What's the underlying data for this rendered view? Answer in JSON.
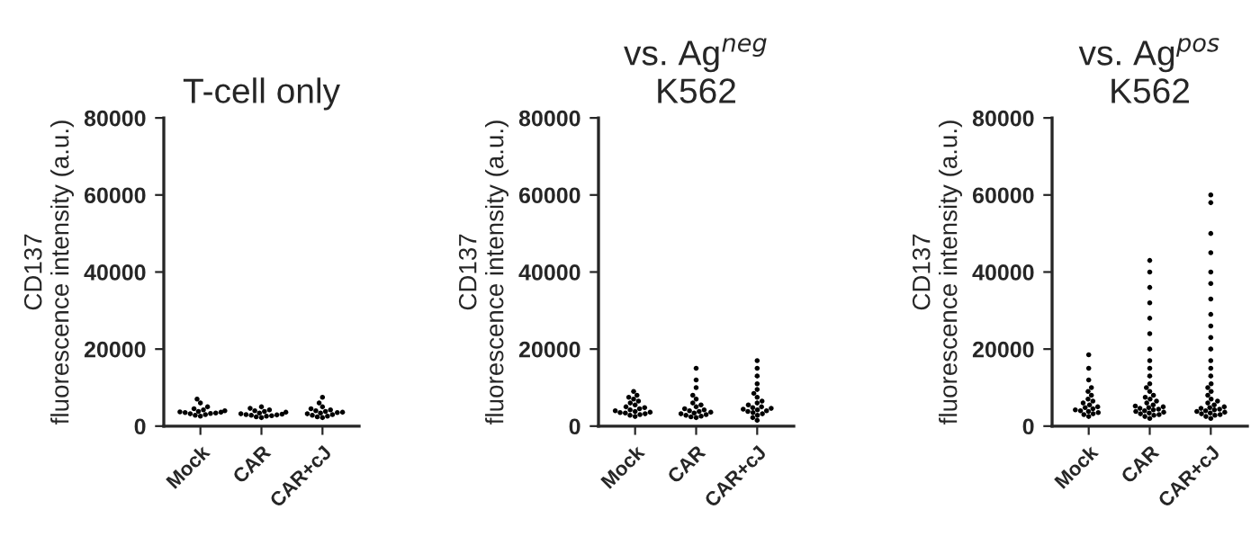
{
  "chart_data": [
    {
      "type": "scatter",
      "title": "T-cell only",
      "ylabel": "CD137\nfluorescence intensity (a.u.)",
      "categories": [
        "Mock",
        "CAR",
        "CAR+cJ"
      ],
      "ylim": [
        0,
        80000
      ],
      "yticks": [
        0,
        20000,
        40000,
        60000,
        80000
      ],
      "marker": "circle",
      "series": [
        {
          "color": "#000000",
          "x": [
            "Mock",
            "Mock",
            "Mock",
            "Mock",
            "Mock",
            "Mock",
            "Mock",
            "Mock",
            "Mock",
            "Mock",
            "Mock",
            "Mock",
            "Mock",
            "Mock",
            "Mock",
            "Mock",
            "CAR",
            "CAR",
            "CAR",
            "CAR",
            "CAR",
            "CAR",
            "CAR",
            "CAR",
            "CAR",
            "CAR",
            "CAR",
            "CAR",
            "CAR",
            "CAR",
            "CAR",
            "CAR",
            "CAR+cJ",
            "CAR+cJ",
            "CAR+cJ",
            "CAR+cJ",
            "CAR+cJ",
            "CAR+cJ",
            "CAR+cJ",
            "CAR+cJ",
            "CAR+cJ",
            "CAR+cJ",
            "CAR+cJ",
            "CAR+cJ",
            "CAR+cJ",
            "CAR+cJ",
            "CAR+cJ",
            "CAR+cJ"
          ],
          "values": [
            7000,
            6000,
            5000,
            4500,
            4200,
            4000,
            3800,
            3600,
            3500,
            3400,
            3300,
            3200,
            3000,
            2800,
            2600,
            3700,
            5000,
            4600,
            4200,
            4000,
            3800,
            3600,
            3400,
            3200,
            3000,
            2900,
            2800,
            2700,
            2600,
            2400,
            2200,
            3100,
            7500,
            6000,
            5000,
            4500,
            4200,
            4000,
            3800,
            3600,
            3400,
            3200,
            3000,
            2800,
            2600,
            2400,
            2200,
            3500
          ]
        }
      ]
    },
    {
      "type": "scatter",
      "title": "vs. Ag$^{neg}$\nK562",
      "ylabel": "CD137\nfluorescence intensity (a.u.)",
      "categories": [
        "Mock",
        "CAR",
        "CAR+cJ"
      ],
      "ylim": [
        0,
        80000
      ],
      "yticks": [
        0,
        20000,
        40000,
        60000,
        80000
      ],
      "marker": "circle",
      "series": [
        {
          "color": "#000000",
          "x": [
            "Mock",
            "Mock",
            "Mock",
            "Mock",
            "Mock",
            "Mock",
            "Mock",
            "Mock",
            "Mock",
            "Mock",
            "Mock",
            "Mock",
            "Mock",
            "Mock",
            "Mock",
            "Mock",
            "Mock",
            "Mock",
            "Mock",
            "Mock",
            "CAR",
            "CAR",
            "CAR",
            "CAR",
            "CAR",
            "CAR",
            "CAR",
            "CAR",
            "CAR",
            "CAR",
            "CAR",
            "CAR",
            "CAR",
            "CAR",
            "CAR",
            "CAR",
            "CAR",
            "CAR",
            "CAR",
            "CAR",
            "CAR+cJ",
            "CAR+cJ",
            "CAR+cJ",
            "CAR+cJ",
            "CAR+cJ",
            "CAR+cJ",
            "CAR+cJ",
            "CAR+cJ",
            "CAR+cJ",
            "CAR+cJ",
            "CAR+cJ",
            "CAR+cJ",
            "CAR+cJ",
            "CAR+cJ",
            "CAR+cJ",
            "CAR+cJ",
            "CAR+cJ",
            "CAR+cJ",
            "CAR+cJ",
            "CAR+cJ",
            "CAR+cJ",
            "CAR+cJ"
          ],
          "values": [
            9000,
            8000,
            7500,
            7000,
            6500,
            6000,
            5500,
            5000,
            4800,
            4500,
            4200,
            4000,
            3800,
            3600,
            3500,
            3400,
            3200,
            3000,
            2800,
            2500,
            15000,
            12000,
            10000,
            8000,
            7000,
            6000,
            5500,
            5000,
            4500,
            4200,
            4000,
            3800,
            3600,
            3400,
            3200,
            3000,
            2800,
            2600,
            2400,
            2200,
            17000,
            15000,
            13000,
            11000,
            9500,
            8500,
            7500,
            6500,
            6000,
            5500,
            5000,
            4800,
            4600,
            4400,
            4200,
            4000,
            3800,
            3500,
            3200,
            2800,
            2200,
            1500
          ]
        }
      ]
    },
    {
      "type": "scatter",
      "title": "vs. Ag$^{pos}$\nK562",
      "ylabel": "CD137\nfluorescence intensity (a.u.)",
      "categories": [
        "Mock",
        "CAR",
        "CAR+cJ"
      ],
      "ylim": [
        0,
        80000
      ],
      "yticks": [
        0,
        20000,
        40000,
        60000,
        80000
      ],
      "marker": "circle",
      "series": [
        {
          "color": "#000000",
          "x": [
            "Mock",
            "Mock",
            "Mock",
            "Mock",
            "Mock",
            "Mock",
            "Mock",
            "Mock",
            "Mock",
            "Mock",
            "Mock",
            "Mock",
            "Mock",
            "Mock",
            "Mock",
            "Mock",
            "Mock",
            "Mock",
            "Mock",
            "Mock",
            "CAR",
            "CAR",
            "CAR",
            "CAR",
            "CAR",
            "CAR",
            "CAR",
            "CAR",
            "CAR",
            "CAR",
            "CAR",
            "CAR",
            "CAR",
            "CAR",
            "CAR",
            "CAR",
            "CAR",
            "CAR",
            "CAR",
            "CAR",
            "CAR",
            "CAR",
            "CAR",
            "CAR",
            "CAR",
            "CAR",
            "CAR",
            "CAR",
            "CAR",
            "CAR",
            "CAR",
            "CAR",
            "CAR",
            "CAR",
            "CAR+cJ",
            "CAR+cJ",
            "CAR+cJ",
            "CAR+cJ",
            "CAR+cJ",
            "CAR+cJ",
            "CAR+cJ",
            "CAR+cJ",
            "CAR+cJ",
            "CAR+cJ",
            "CAR+cJ",
            "CAR+cJ",
            "CAR+cJ",
            "CAR+cJ",
            "CAR+cJ",
            "CAR+cJ",
            "CAR+cJ",
            "CAR+cJ",
            "CAR+cJ",
            "CAR+cJ",
            "CAR+cJ",
            "CAR+cJ",
            "CAR+cJ",
            "CAR+cJ",
            "CAR+cJ",
            "CAR+cJ",
            "CAR+cJ",
            "CAR+cJ",
            "CAR+cJ",
            "CAR+cJ",
            "CAR+cJ",
            "CAR+cJ",
            "CAR+cJ",
            "CAR+cJ",
            "CAR+cJ",
            "CAR+cJ"
          ],
          "values": [
            18500,
            15000,
            12000,
            10000,
            9000,
            8000,
            7000,
            6500,
            6000,
            5500,
            5000,
            4800,
            4500,
            4200,
            4000,
            3800,
            3500,
            3200,
            3000,
            2500,
            43000,
            40000,
            36000,
            32000,
            28000,
            24000,
            20000,
            17000,
            15000,
            13000,
            11000,
            10000,
            9000,
            8000,
            7500,
            7000,
            6500,
            6000,
            5500,
            5200,
            5000,
            4800,
            4600,
            4400,
            4200,
            4000,
            3800,
            3600,
            3400,
            3200,
            3000,
            2800,
            2500,
            2000,
            60000,
            58000,
            50000,
            45000,
            40000,
            37000,
            33000,
            29000,
            26000,
            23000,
            20000,
            17000,
            15000,
            13000,
            11000,
            10000,
            9000,
            8000,
            7000,
            6500,
            6000,
            5500,
            5000,
            4800,
            4600,
            4400,
            4200,
            4000,
            3800,
            3600,
            3400,
            3200,
            3000,
            2800,
            2500,
            2000
          ]
        }
      ]
    }
  ]
}
